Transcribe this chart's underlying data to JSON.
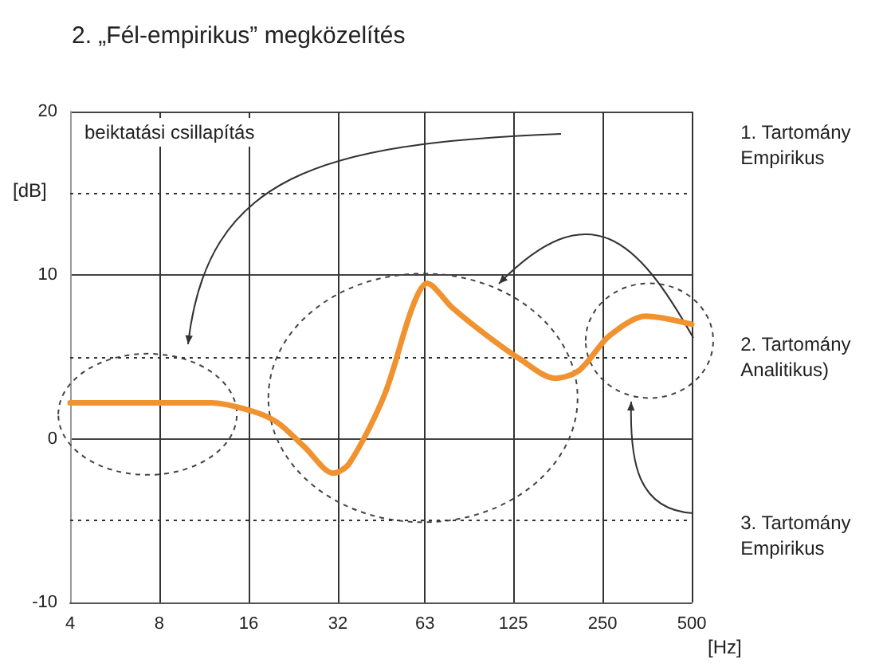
{
  "chart_data": {
    "type": "line",
    "title": "2. „Fél-empirikus” megközelítés",
    "xlabel": "[Hz]",
    "ylabel": "[dB]",
    "annotations": [
      "beiktatási csillapítás",
      "1. Tartomány\nEmpirikus",
      "2. Tartomány\nAnalitikus)",
      "3. Tartomány\nEmpirikus"
    ],
    "x": [
      4,
      12,
      16.4,
      20,
      24.7,
      30.9,
      35,
      46,
      57,
      64,
      78,
      102,
      131,
      173,
      209,
      264,
      350,
      500
    ],
    "series": [
      {
        "color": "#f0922f",
        "values": [
          2.2,
          2.2,
          1.7,
          1.0,
          -0.5,
          -2.1,
          -1.5,
          2.7,
          8.0,
          9.5,
          8.0,
          6.3,
          4.9,
          3.7,
          4.2,
          6.3,
          7.5,
          7.0
        ]
      }
    ],
    "log": "x",
    "xlim": [
      4,
      500
    ],
    "xticks": [
      4,
      8,
      16,
      32,
      63,
      125,
      250,
      500
    ],
    "ylim": [
      -10,
      20
    ],
    "yticks": [
      -10,
      {
        "value": -5,
        "label": null
      },
      0,
      {
        "value": 5,
        "label": null
      },
      10,
      {
        "value": 15,
        "label": null
      },
      20
    ],
    "grid": true,
    "marker": "none",
    "line_style": "solid"
  }
}
